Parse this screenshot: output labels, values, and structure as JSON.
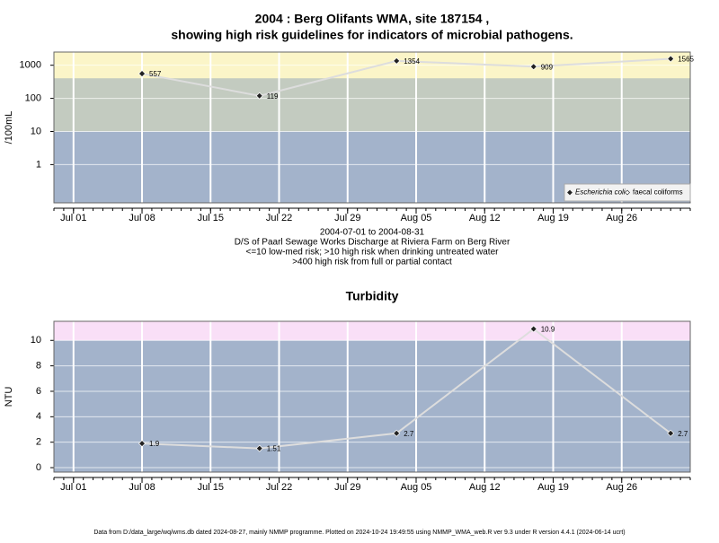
{
  "chart_data": [
    {
      "type": "line",
      "title": [
        "2004 : Berg Olifants WMA, site 187154 ,",
        "showing high risk guidelines for indicators of microbial pathogens."
      ],
      "y_label": "/100mL",
      "log_y": true,
      "x": [
        "2004-07-08",
        "2004-07-20",
        "2004-08-03",
        "2004-08-17",
        "2004-08-31"
      ],
      "series": [
        {
          "name": "Escherichia coli",
          "color": "#222222",
          "line_color": "#dddddd",
          "values": [
            557,
            119,
            1354,
            909,
            1565
          ]
        },
        {
          "name": "faecal coliforms",
          "color": "#ffffff",
          "line_color": "#dddddd",
          "values": [
            null,
            null,
            null,
            null,
            null
          ]
        }
      ],
      "xlim": [
        "2004-06-29",
        "2004-09-02"
      ],
      "xticks": [
        {
          "value": "2004-07-01",
          "label": "Jul 01"
        },
        {
          "value": "2004-07-08",
          "label": "Jul 08"
        },
        {
          "value": "2004-07-15",
          "label": "Jul 15"
        },
        {
          "value": "2004-07-22",
          "label": "Jul 22"
        },
        {
          "value": "2004-07-29",
          "label": "Jul 29"
        },
        {
          "value": "2004-08-05",
          "label": "Aug 05"
        },
        {
          "value": "2004-08-12",
          "label": "Aug 12"
        },
        {
          "value": "2004-08-19",
          "label": "Aug 19"
        },
        {
          "value": "2004-08-26",
          "label": "Aug 26"
        }
      ],
      "ylim": [
        0.07,
        2500
      ],
      "yticks": [
        1,
        10,
        100,
        1000
      ],
      "background": "#a3b3cb",
      "bands": [
        {
          "lower": 400,
          "color": "#fbf5c8"
        },
        {
          "lower": 10,
          "upper": 400,
          "color": "#c3cbc0"
        }
      ],
      "grid": true,
      "legend": "bottom right",
      "notes": [
        "2004-07-01 to 2004-08-31",
        "D/S of Paarl Sewage Works Discharge at Riviera Farm on Berg River",
        "<=10 low-med risk; >10 high risk when drinking untreated water",
        ">400 high risk from full or partial contact"
      ]
    },
    {
      "type": "line",
      "title": [
        "Turbidity"
      ],
      "y_label": "NTU",
      "log_y": false,
      "x": [
        "2004-07-08",
        "2004-07-20",
        "2004-08-03",
        "2004-08-17",
        "2004-08-31"
      ],
      "series": [
        {
          "name": "Turbidity",
          "color": "#222222",
          "line_color": "#dddddd",
          "values": [
            1.9,
            1.51,
            2.7,
            10.9,
            2.7
          ]
        }
      ],
      "xlim": [
        "2004-06-29",
        "2004-09-02"
      ],
      "xticks": [
        {
          "value": "2004-07-01",
          "label": "Jul 01"
        },
        {
          "value": "2004-07-08",
          "label": "Jul 08"
        },
        {
          "value": "2004-07-15",
          "label": "Jul 15"
        },
        {
          "value": "2004-07-22",
          "label": "Jul 22"
        },
        {
          "value": "2004-07-29",
          "label": "Jul 29"
        },
        {
          "value": "2004-08-05",
          "label": "Aug 05"
        },
        {
          "value": "2004-08-12",
          "label": "Aug 12"
        },
        {
          "value": "2004-08-19",
          "label": "Aug 19"
        },
        {
          "value": "2004-08-26",
          "label": "Aug 26"
        }
      ],
      "ylim": [
        -0.35,
        11.5
      ],
      "yticks": [
        0,
        2,
        4,
        6,
        8,
        10
      ],
      "background": "#a3b3cb",
      "bands": [
        {
          "lower": 10,
          "color": "#f9dff7"
        }
      ],
      "grid": true
    }
  ],
  "footer": "Data from D:/data_large/wq/wms.db dated 2024-08-27, mainly NMMP programme. Plotted on 2024-10-24 19:49:55 using NMMP_WMA_web.R ver 9.3 under R version 4.4.1 (2024-06-14 ucrt)"
}
